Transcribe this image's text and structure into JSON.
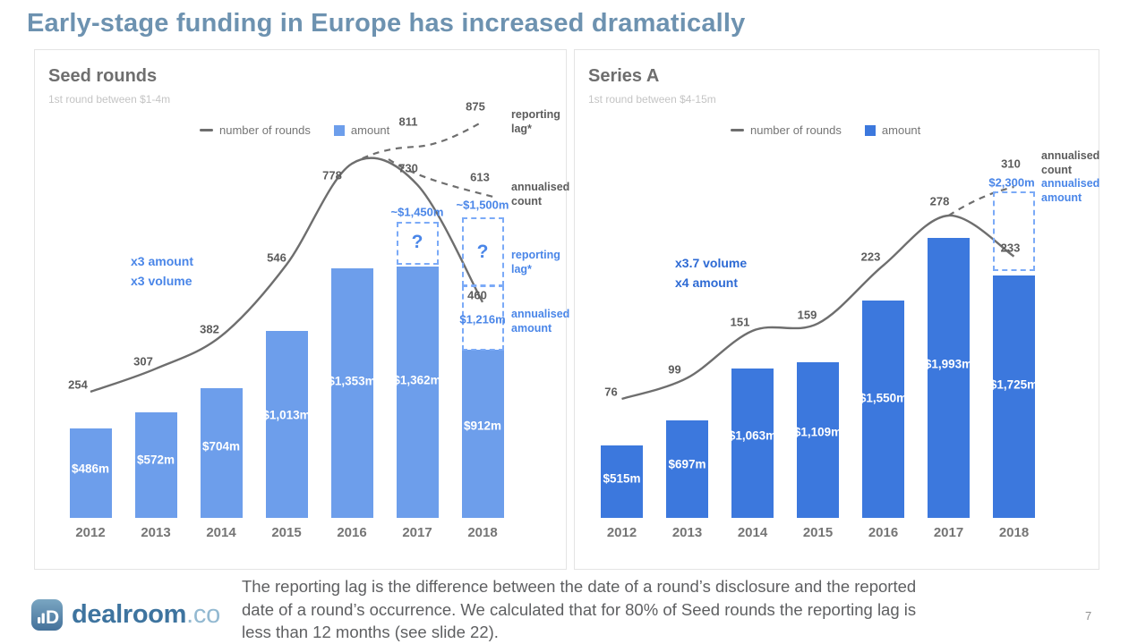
{
  "slide": {
    "title": "Early-stage funding in Europe has increased dramatically",
    "page_number": "7",
    "footnote_lines": [
      "The reporting lag is the difference between the date of a round’s disclosure and the reported",
      "date of a round’s occurrence. We calculated that for 80% of Seed rounds the reporting lag is",
      "less than 12 months (see slide 22)."
    ],
    "logo": {
      "name": "dealroom",
      "suffix": ".co"
    }
  },
  "colors": {
    "seed_bar": "#6d9eeb",
    "series_a_bar": "#3c78dd",
    "line_gray": "#6e6e6e",
    "accent_blue": "#4a86e8",
    "dark_blue": "#2d6ad4",
    "title_blue": "#6d92b0"
  },
  "chart_data": [
    {
      "type": "bar+line",
      "title": "Seed rounds",
      "subtitle": "1st round between $1-4m",
      "legend": [
        "number of rounds",
        "amount"
      ],
      "categories": [
        "2012",
        "2013",
        "2014",
        "2015",
        "2016",
        "2017",
        "2018"
      ],
      "series": [
        {
          "name": "number of rounds",
          "type": "line",
          "values": [
            254,
            307,
            382,
            546,
            778,
            730,
            460
          ]
        },
        {
          "name": "amount",
          "type": "bar",
          "unit": "$m",
          "values": [
            486,
            572,
            704,
            1013,
            1353,
            1362,
            912
          ]
        }
      ],
      "bar_labels": [
        "$486m",
        "$572m",
        "$704m",
        "$1,013m",
        "$1,353m",
        "$1,362m",
        "$912m"
      ],
      "count_labels": [
        "254",
        "307",
        "382",
        "546",
        "778",
        "730",
        "460"
      ],
      "bar_color": "#6d9eeb",
      "annotation_lines": [
        "x3 amount",
        "x3 volume"
      ],
      "annotation_color": "#4a86e8",
      "overlay_labels": [
        {
          "id": "reporting-lag-count-2017",
          "text": "811",
          "style": "count"
        },
        {
          "id": "reporting-lag-count-2018",
          "text": "875",
          "style": "count"
        },
        {
          "id": "annualised-count-2018",
          "text": "613",
          "style": "count"
        },
        {
          "id": "estimated-amount-2017",
          "text": "~$1,450m",
          "style": "blue"
        },
        {
          "id": "estimated-amount-2018",
          "text": "~$1,500m",
          "style": "blue"
        },
        {
          "id": "question-mark-2017",
          "text": "?",
          "style": "question"
        },
        {
          "id": "question-mark-2018",
          "text": "?",
          "style": "question"
        },
        {
          "id": "annualised-amount-2018",
          "text": "$1,216m",
          "style": "blue"
        }
      ],
      "side_labels": [
        {
          "text": "reporting lag*",
          "color": "gray"
        },
        {
          "text": "annualised count",
          "color": "gray"
        },
        {
          "text": "reporting lag*",
          "color": "blue"
        },
        {
          "text": "annualised amount",
          "color": "blue"
        }
      ]
    },
    {
      "type": "bar+line",
      "title": "Series A",
      "subtitle": "1st round between $4-15m",
      "legend": [
        "number of rounds",
        "amount"
      ],
      "categories": [
        "2012",
        "2013",
        "2014",
        "2015",
        "2016",
        "2017",
        "2018"
      ],
      "series": [
        {
          "name": "number of rounds",
          "type": "line",
          "values": [
            76,
            99,
            151,
            159,
            223,
            278,
            233
          ]
        },
        {
          "name": "amount",
          "type": "bar",
          "unit": "$m",
          "values": [
            515,
            697,
            1063,
            1109,
            1550,
            1993,
            1725
          ]
        }
      ],
      "bar_labels": [
        "$515m",
        "$697m",
        "$1,063m",
        "$1,109m",
        "$1,550m",
        "$1,993m",
        "$1,725m"
      ],
      "count_labels": [
        "76",
        "99",
        "151",
        "159",
        "223",
        "278",
        "233"
      ],
      "bar_color": "#3c78dd",
      "annotation_lines": [
        "x3.7 volume",
        "x4 amount"
      ],
      "annotation_color": "#2d6ad4",
      "overlay_labels": [
        {
          "id": "annualised-count-2018",
          "text": "310",
          "style": "count"
        },
        {
          "id": "annualised-amount-2018",
          "text": "$2,300m",
          "style": "blue"
        }
      ],
      "side_labels": [
        {
          "text": "annualised count",
          "color": "gray"
        },
        {
          "text": "annualised amount",
          "color": "blue"
        }
      ]
    }
  ]
}
